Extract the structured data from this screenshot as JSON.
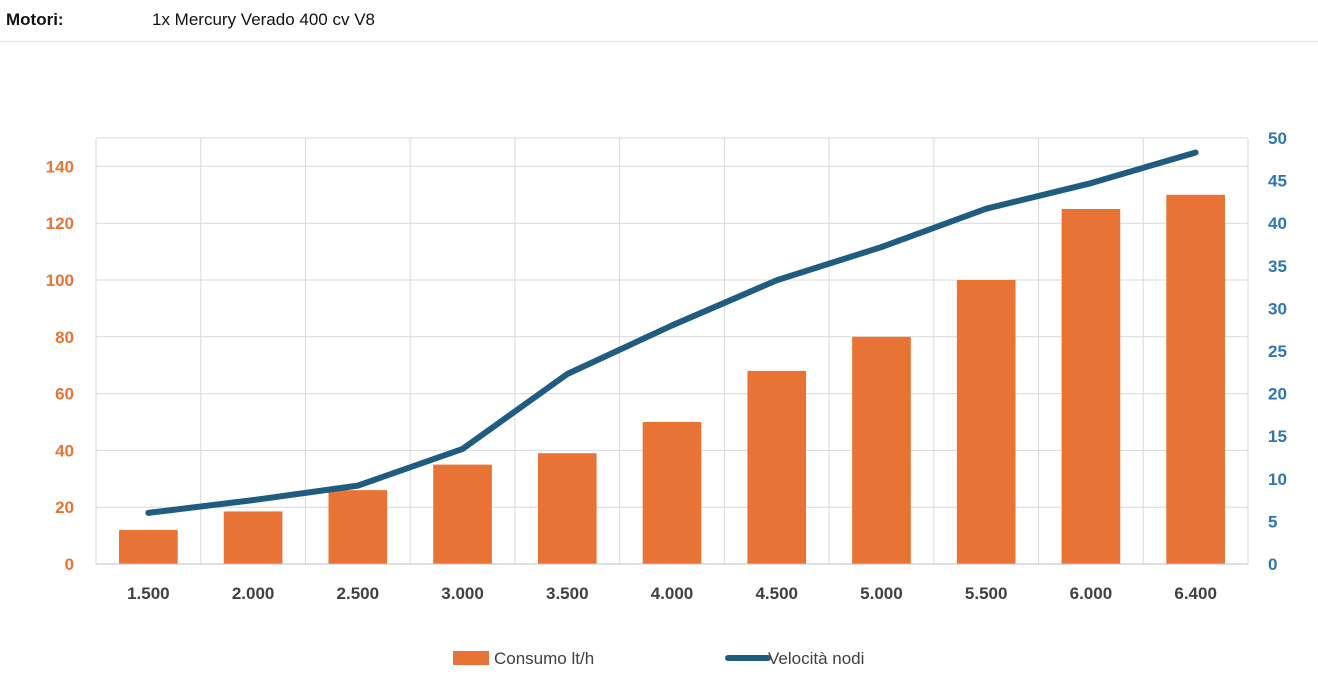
{
  "header": {
    "label": "Motori:",
    "value": "1x Mercury Verado 400 cv V8"
  },
  "chart_data": {
    "type": "bar",
    "categories": [
      "1.500",
      "2.000",
      "2.500",
      "3.000",
      "3.500",
      "4.000",
      "4.500",
      "5.000",
      "5.500",
      "6.000",
      "6.400"
    ],
    "series": [
      {
        "name": "Consumo lt/h",
        "type": "bar",
        "axis": "left",
        "color": "#E87334",
        "values": [
          12,
          18.5,
          26,
          35,
          39,
          50,
          68,
          80,
          100,
          125,
          130
        ]
      },
      {
        "name": "Velocità nodi",
        "type": "line",
        "axis": "right",
        "color": "#1F5C7F",
        "values": [
          6,
          7.5,
          9.2,
          13.5,
          22.3,
          28,
          33.3,
          37.2,
          41.7,
          44.7,
          48.3
        ]
      }
    ],
    "y_left": {
      "ylim": [
        0,
        150
      ],
      "ticks": [
        0,
        20,
        40,
        60,
        80,
        100,
        120,
        140
      ],
      "color": "#E87334"
    },
    "y_right": {
      "ylim": [
        0,
        50
      ],
      "ticks": [
        0,
        5,
        10,
        15,
        20,
        25,
        30,
        35,
        40,
        45,
        50
      ],
      "color": "#2E75B6"
    },
    "grid": true,
    "legend": "bottom"
  }
}
